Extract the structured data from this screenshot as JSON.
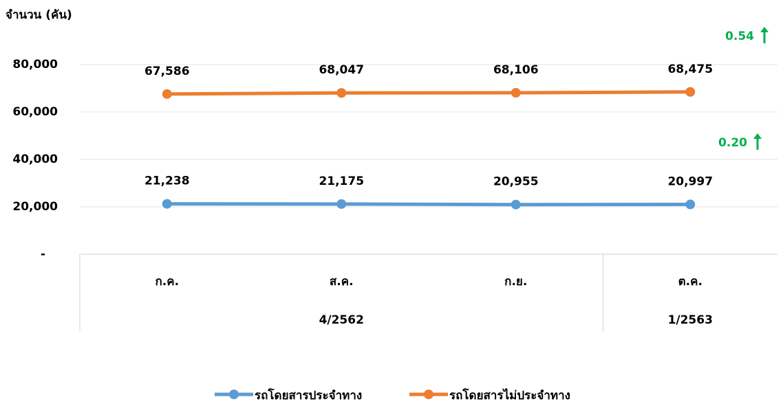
{
  "chart_data": {
    "type": "line",
    "y_axis_label": "จำนวน (คัน)",
    "categories": [
      "ก.ค.",
      "ส.ค.",
      "ก.ย.",
      "ต.ค."
    ],
    "category_groups": [
      {
        "label": "4/2562",
        "span": 3
      },
      {
        "label": "1/2563",
        "span": 1
      }
    ],
    "series": [
      {
        "name": "รถโดยสารประจำทาง",
        "color": "#5b9bd5",
        "values": [
          21238,
          21175,
          20955,
          20997
        ],
        "value_labels": [
          "21,238",
          "21,175",
          "20,955",
          "20,997"
        ]
      },
      {
        "name": "รถโดยสารไม่ประจำทาง",
        "color": "#ed7d31",
        "values": [
          67586,
          68047,
          68106,
          68475
        ],
        "value_labels": [
          "67,586",
          "68,047",
          "68,106",
          "68,475"
        ]
      }
    ],
    "annotations": [
      {
        "text": "0.54",
        "color": "#00b050"
      },
      {
        "text": "0.20",
        "color": "#00b050"
      }
    ],
    "ylim": [
      0,
      80000
    ],
    "yticks": [
      {
        "value": 0,
        "label": "-"
      },
      {
        "value": 20000,
        "label": "20,000"
      },
      {
        "value": 40000,
        "label": "40,000"
      },
      {
        "value": 60000,
        "label": "60,000"
      },
      {
        "value": 80000,
        "label": "80,000"
      }
    ],
    "grid": true
  }
}
